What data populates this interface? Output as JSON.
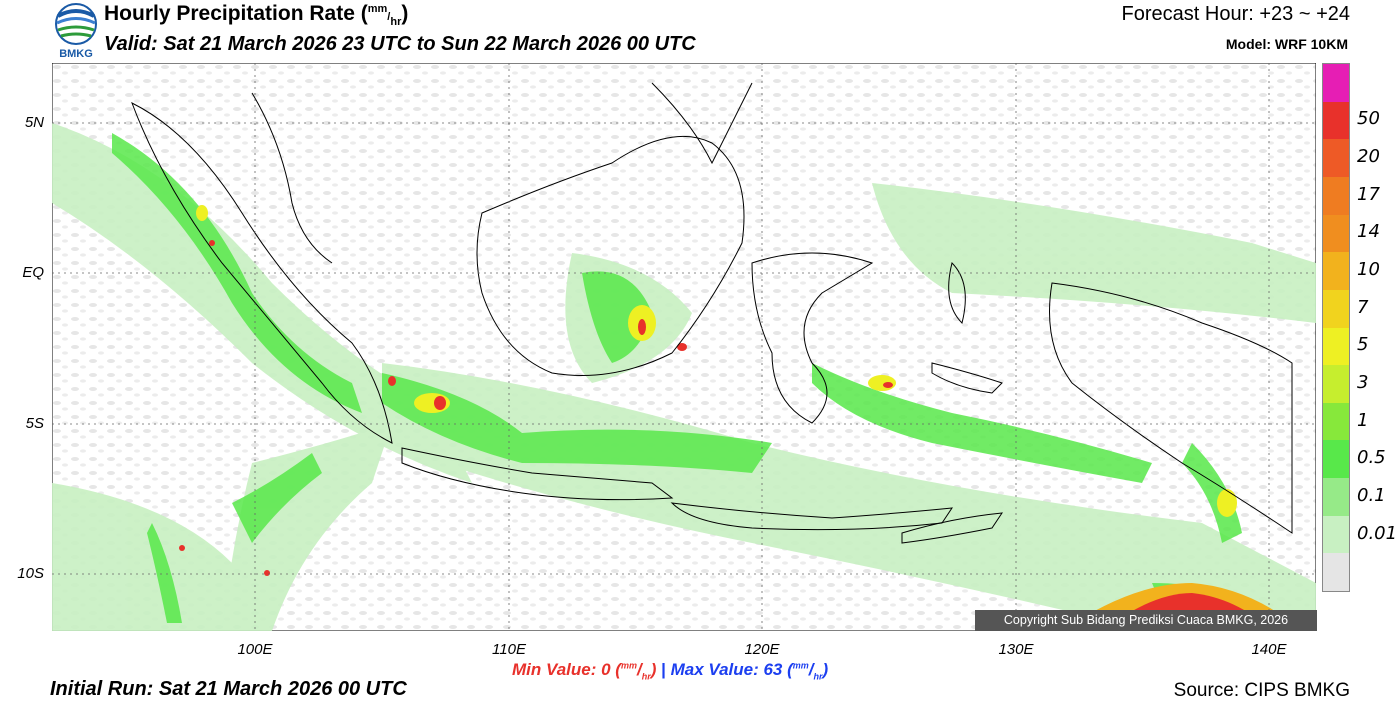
{
  "header": {
    "title_main": "Hourly Precipitation Rate (",
    "title_unit_mm": "mm",
    "title_unit_sep": "/",
    "title_unit_hr": "hr",
    "title_close": ")",
    "valid": "Valid: Sat 21 March 2026 23 UTC to Sun 22 March 2026 00 UTC",
    "forecast_hour": "Forecast Hour: +23 ~ +24",
    "model": "Model: WRF 10KM",
    "logo_text": "BMKG"
  },
  "map": {
    "lat_labels": [
      "5N",
      "EQ",
      "5S",
      "10S"
    ],
    "lon_labels": [
      "100E",
      "110E",
      "120E",
      "130E",
      "140E"
    ],
    "copyright": "Copyright Sub Bidang Prediksi Cuaca BMKG, 2026"
  },
  "colorbar": {
    "labels": [
      "50",
      "20",
      "17",
      "14",
      "10",
      "7",
      "5",
      "3",
      "1",
      "0.5",
      "0.1",
      "0.01"
    ],
    "colors": [
      "#e61eb4",
      "#e8312b",
      "#ee5a26",
      "#ef7c21",
      "#f08e1f",
      "#f2b21d",
      "#f1d31e",
      "#eef023",
      "#c6ee2e",
      "#87e83b",
      "#58e84a",
      "#96ea88",
      "#c8f0c2",
      "#e5e5e5"
    ]
  },
  "footer": {
    "min_label": "Min Value:   0 (",
    "min_close": ")",
    "separator": " | ",
    "max_label": "Max Value:  63 (",
    "max_close": ")",
    "unit_mm": "mm",
    "unit_hr": "hr",
    "initial_run": "Initial Run: Sat 21 March 2026 00 UTC",
    "source": "Source: CIPS BMKG"
  }
}
